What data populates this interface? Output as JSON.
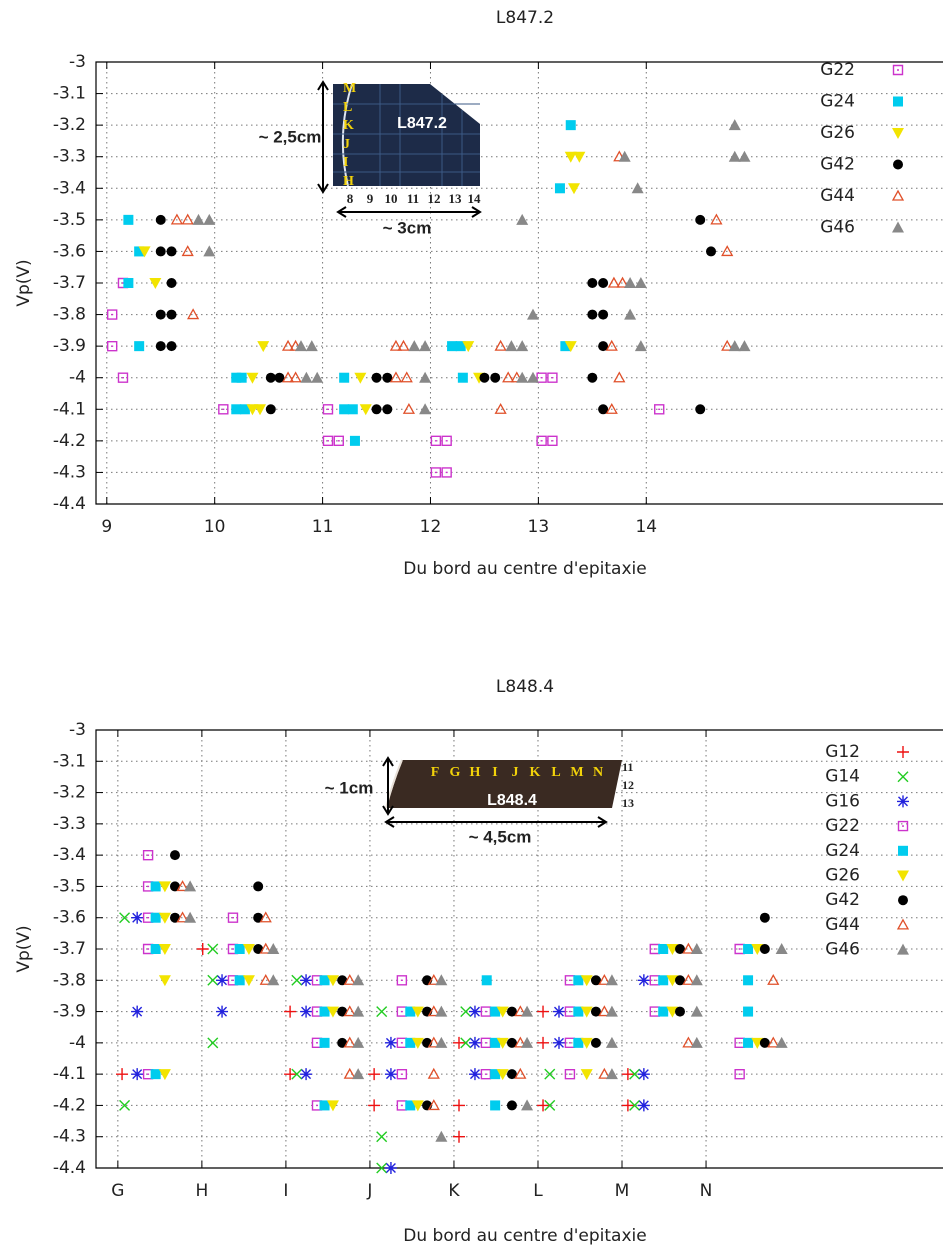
{
  "chart_data": [
    {
      "type": "scatter",
      "title": "L847.2",
      "x_label": "Du bord au centre d'epitaxie",
      "y_label": "Vp(V)",
      "xlim": [
        8.9,
        16.75
      ],
      "ylim": [
        -4.4,
        -3
      ],
      "xticks": [
        9,
        10,
        11,
        12,
        13,
        14
      ],
      "yticks": [
        -3,
        -3.1,
        -3.2,
        -3.3,
        -3.4,
        -3.5,
        -3.6,
        -3.7,
        -3.8,
        -3.9,
        -4,
        -4.1,
        -4.2,
        -4.3,
        -4.4
      ],
      "grid": true,
      "legend": "upper right",
      "inset": {
        "photo_label": "L847.2",
        "row_labels": [
          "M",
          "L",
          "K",
          "J",
          "I",
          "H"
        ],
        "column_labels": [
          "8",
          "9",
          "10",
          "11",
          "12",
          "13",
          "14"
        ],
        "height_label": "~ 2,5cm",
        "width_label": "~ 3cm"
      },
      "series": [
        {
          "name": "G22",
          "color": "#cc33cc",
          "marker": "square-dot",
          "x": [
            9.05,
            9.05,
            9.15,
            9.15,
            10.08,
            11.05,
            11.05,
            11.15,
            12.05,
            12.15,
            12.05,
            12.15,
            13.03,
            13.13,
            13.03,
            13.13,
            14.12
          ],
          "values": [
            -3.8,
            -3.9,
            -3.7,
            -4.0,
            -4.1,
            -4.1,
            -4.2,
            -4.2,
            -4.2,
            -4.2,
            -4.3,
            -4.3,
            -4.0,
            -4.0,
            -4.2,
            -4.2,
            -4.1
          ]
        },
        {
          "name": "G24",
          "color": "#00ccee",
          "marker": "square",
          "x": [
            9.2,
            9.3,
            9.2,
            9.3,
            10.2,
            10.25,
            10.2,
            10.28,
            11.2,
            11.2,
            11.28,
            11.3,
            12.2,
            12.28,
            12.3,
            13.2,
            13.3,
            13.25
          ],
          "values": [
            -3.5,
            -3.6,
            -3.7,
            -3.9,
            -4.0,
            -4.0,
            -4.1,
            -4.1,
            -4.0,
            -4.1,
            -4.1,
            -4.2,
            -3.9,
            -3.9,
            -4.0,
            -3.4,
            -3.2,
            -3.9
          ]
        },
        {
          "name": "G26",
          "color": "#f2e400",
          "marker": "triangle-down",
          "x": [
            9.35,
            9.45,
            10.35,
            10.45,
            10.35,
            10.42,
            11.35,
            11.4,
            12.45,
            13.3,
            13.38,
            13.33,
            13.3,
            12.35
          ],
          "values": [
            -3.6,
            -3.7,
            -4.0,
            -3.9,
            -4.1,
            -4.1,
            -4.0,
            -4.1,
            -4.0,
            -3.3,
            -3.3,
            -3.4,
            -3.9,
            -3.9
          ]
        },
        {
          "name": "G42",
          "color": "#000000",
          "marker": "circle",
          "x": [
            9.5,
            9.5,
            9.6,
            9.6,
            9.5,
            9.6,
            9.5,
            9.6,
            10.52,
            10.6,
            10.52,
            11.5,
            11.6,
            11.5,
            11.6,
            12.5,
            12.6,
            13.5,
            13.6,
            13.5,
            13.6,
            13.6,
            13.5,
            13.6,
            14.5,
            14.6,
            14.5
          ],
          "values": [
            -3.5,
            -3.6,
            -3.6,
            -3.7,
            -3.8,
            -3.8,
            -3.9,
            -3.9,
            -4.0,
            -4.0,
            -4.1,
            -4.0,
            -4.0,
            -4.1,
            -4.1,
            -4.0,
            -4.0,
            -3.7,
            -3.7,
            -3.8,
            -3.8,
            -3.9,
            -4.0,
            -4.1,
            -3.5,
            -3.6,
            -4.1
          ]
        },
        {
          "name": "G44",
          "color": "#e0502a",
          "marker": "triangle-open",
          "x": [
            9.65,
            9.75,
            9.75,
            9.8,
            10.68,
            10.75,
            10.68,
            10.75,
            11.68,
            11.75,
            11.68,
            11.78,
            11.8,
            12.65,
            12.72,
            12.8,
            12.65,
            13.7,
            13.78,
            13.75,
            13.68,
            13.75,
            13.68,
            14.65,
            14.75,
            14.75
          ],
          "values": [
            -3.5,
            -3.5,
            -3.6,
            -3.8,
            -3.9,
            -3.9,
            -4.0,
            -4.0,
            -3.9,
            -3.9,
            -4.0,
            -4.0,
            -4.1,
            -3.9,
            -4.0,
            -4.0,
            -4.1,
            -3.7,
            -3.7,
            -3.3,
            -3.9,
            -4.0,
            -4.1,
            -3.5,
            -3.6,
            -3.9
          ]
        },
        {
          "name": "G46",
          "color": "#888888",
          "marker": "triangle",
          "x": [
            9.85,
            9.95,
            9.95,
            10.8,
            10.9,
            10.85,
            10.95,
            11.85,
            11.95,
            11.95,
            11.95,
            12.75,
            12.85,
            12.85,
            12.95,
            12.85,
            12.95,
            13.8,
            13.85,
            13.95,
            13.85,
            13.95,
            13.92,
            14.82,
            14.82,
            14.91,
            14.82,
            14.91
          ],
          "values": [
            -3.5,
            -3.5,
            -3.6,
            -3.9,
            -3.9,
            -4.0,
            -4.0,
            -3.9,
            -3.9,
            -4.0,
            -4.1,
            -3.9,
            -3.9,
            -4.0,
            -4.0,
            -3.5,
            -3.8,
            -3.3,
            -3.7,
            -3.7,
            -3.8,
            -3.9,
            -3.4,
            -3.2,
            -3.3,
            -3.3,
            -3.9,
            -3.9
          ]
        }
      ]
    },
    {
      "type": "scatter",
      "title": "L848.4",
      "x_label": "Du bord au centre d'epitaxie",
      "y_label": "Vp(V)",
      "xlim": [
        -0.26,
        9.82
      ],
      "ylim": [
        -4.4,
        -3
      ],
      "xticks": [
        {
          "value": 0,
          "label": "G"
        },
        {
          "value": 1,
          "label": "H"
        },
        {
          "value": 2,
          "label": "I"
        },
        {
          "value": 3,
          "label": "J"
        },
        {
          "value": 4,
          "label": "K"
        },
        {
          "value": 5,
          "label": "L"
        },
        {
          "value": 6,
          "label": "M"
        },
        {
          "value": 7,
          "label": "N"
        }
      ],
      "yticks": [
        -3,
        -3.1,
        -3.2,
        -3.3,
        -3.4,
        -3.5,
        -3.6,
        -3.7,
        -3.8,
        -3.9,
        -4,
        -4.1,
        -4.2,
        -4.3,
        -4.4
      ],
      "grid": true,
      "legend": "upper right",
      "inset": {
        "photo_label": "L848.4",
        "row_labels": [
          "11",
          "12",
          "13"
        ],
        "column_labels": [
          "F",
          "G",
          "H",
          "I",
          "J",
          "K",
          "L",
          "M",
          "N"
        ],
        "height_label": "~ 1cm",
        "width_label": "~ 4,5cm"
      },
      "series": [
        {
          "name": "G12",
          "color": "#ee1111",
          "marker": "plus",
          "x": [
            1.01,
            2.05,
            5.06,
            4.06,
            5.06,
            0.05,
            2.05,
            3.05,
            6.07,
            3.05,
            4.06,
            5.06,
            6.07,
            4.06
          ],
          "values": [
            -3.7,
            -3.9,
            -3.9,
            -4.0,
            -4.0,
            -4.1,
            -4.1,
            -4.1,
            -4.1,
            -4.2,
            -4.2,
            -4.2,
            -4.2,
            -4.3
          ]
        },
        {
          "name": "G14",
          "color": "#22cc22",
          "marker": "cross",
          "x": [
            0.08,
            1.13,
            1.13,
            2.13,
            3.14,
            4.14,
            1.13,
            4.14,
            2.13,
            5.14,
            6.15,
            0.08,
            5.14,
            6.15,
            3.14,
            3.14
          ],
          "values": [
            -3.6,
            -3.7,
            -3.8,
            -3.8,
            -3.9,
            -3.9,
            -4.0,
            -4.0,
            -4.1,
            -4.1,
            -4.1,
            -4.2,
            -4.2,
            -4.2,
            -4.3,
            -4.4
          ]
        },
        {
          "name": "G16",
          "color": "#2222dd",
          "marker": "star",
          "x": [
            0.23,
            1.24,
            2.24,
            6.26,
            0.23,
            1.24,
            2.24,
            4.25,
            5.25,
            3.25,
            4.25,
            5.25,
            0.23,
            2.24,
            3.25,
            4.25,
            6.26,
            6.26,
            3.25
          ],
          "values": [
            -3.6,
            -3.8,
            -3.8,
            -3.8,
            -3.9,
            -3.9,
            -3.9,
            -3.9,
            -3.9,
            -4.0,
            -4.0,
            -4.0,
            -4.1,
            -4.1,
            -4.1,
            -4.1,
            -4.1,
            -4.2,
            -4.4
          ]
        },
        {
          "name": "G22",
          "color": "#cc33cc",
          "marker": "square-dot",
          "x": [
            0.36,
            0.36,
            0.36,
            1.37,
            0.36,
            1.37,
            6.39,
            7.4,
            1.37,
            2.37,
            3.38,
            5.38,
            6.39,
            2.37,
            3.38,
            4.38,
            5.38,
            6.39,
            2.37,
            3.38,
            4.38,
            5.38,
            7.4,
            0.36,
            3.38,
            4.38,
            5.38,
            7.4,
            2.37,
            3.38
          ],
          "values": [
            -3.4,
            -3.5,
            -3.6,
            -3.6,
            -3.7,
            -3.7,
            -3.7,
            -3.7,
            -3.8,
            -3.8,
            -3.8,
            -3.8,
            -3.8,
            -3.9,
            -3.9,
            -3.9,
            -3.9,
            -3.9,
            -4.0,
            -4.0,
            -4.0,
            -4.0,
            -4.0,
            -4.1,
            -4.1,
            -4.1,
            -4.1,
            -4.1,
            -4.2,
            -4.2
          ]
        },
        {
          "name": "G24",
          "color": "#00ccee",
          "marker": "square",
          "x": [
            0.45,
            0.45,
            0.45,
            1.45,
            6.49,
            7.5,
            1.45,
            2.46,
            4.39,
            5.48,
            6.49,
            7.5,
            2.46,
            3.48,
            4.49,
            5.48,
            6.49,
            7.5,
            2.46,
            3.48,
            4.49,
            5.48,
            7.5,
            0.45,
            4.49,
            2.46,
            3.48,
            4.49
          ],
          "values": [
            -3.5,
            -3.6,
            -3.7,
            -3.7,
            -3.7,
            -3.7,
            -3.8,
            -3.8,
            -3.8,
            -3.8,
            -3.8,
            -3.8,
            -3.9,
            -3.9,
            -3.9,
            -3.9,
            -3.9,
            -3.9,
            -4.0,
            -4.0,
            -4.0,
            -4.0,
            -4.0,
            -4.1,
            -4.1,
            -4.2,
            -4.2,
            -4.2
          ]
        },
        {
          "name": "G26",
          "color": "#f2e400",
          "marker": "triangle-down",
          "x": [
            0.56,
            0.56,
            0.56,
            1.56,
            6.6,
            7.61,
            0.56,
            1.56,
            2.56,
            5.58,
            6.6,
            2.56,
            3.57,
            4.58,
            5.58,
            6.6,
            3.57,
            4.58,
            5.58,
            7.61,
            0.56,
            4.58,
            5.58,
            2.56,
            3.57
          ],
          "values": [
            -3.5,
            -3.6,
            -3.7,
            -3.7,
            -3.7,
            -3.7,
            -3.8,
            -3.8,
            -3.8,
            -3.8,
            -3.8,
            -3.9,
            -3.9,
            -3.9,
            -3.9,
            -3.9,
            -4.0,
            -4.0,
            -4.0,
            -4.0,
            -4.1,
            -4.1,
            -4.1,
            -4.2,
            -4.2
          ]
        },
        {
          "name": "G42",
          "color": "#000000",
          "marker": "circle",
          "x": [
            0.68,
            0.68,
            1.67,
            0.68,
            1.67,
            7.7,
            1.67,
            6.69,
            7.7,
            2.67,
            3.68,
            5.69,
            6.69,
            2.67,
            3.68,
            4.69,
            5.69,
            6.69,
            2.67,
            3.68,
            4.69,
            5.69,
            7.7,
            4.69,
            3.68,
            4.69
          ],
          "values": [
            -3.4,
            -3.5,
            -3.5,
            -3.6,
            -3.6,
            -3.6,
            -3.7,
            -3.7,
            -3.7,
            -3.8,
            -3.8,
            -3.8,
            -3.8,
            -3.9,
            -3.9,
            -3.9,
            -3.9,
            -3.9,
            -4.0,
            -4.0,
            -4.0,
            -4.0,
            -4.0,
            -4.1,
            -4.2,
            -4.2
          ]
        },
        {
          "name": "G44",
          "color": "#e0502a",
          "marker": "triangle-open",
          "x": [
            0.77,
            0.77,
            1.76,
            1.76,
            6.79,
            1.76,
            2.76,
            3.76,
            5.79,
            6.79,
            7.8,
            2.76,
            3.76,
            4.79,
            5.79,
            2.76,
            3.76,
            4.79,
            6.79,
            7.8,
            2.76,
            3.76,
            4.79,
            5.79,
            3.76
          ],
          "values": [
            -3.5,
            -3.6,
            -3.6,
            -3.7,
            -3.7,
            -3.8,
            -3.8,
            -3.8,
            -3.8,
            -3.8,
            -3.8,
            -3.9,
            -3.9,
            -3.9,
            -3.9,
            -4.0,
            -4.0,
            -4.0,
            -4.0,
            -4.0,
            -4.1,
            -4.1,
            -4.1,
            -4.1,
            -4.2
          ]
        },
        {
          "name": "G46",
          "color": "#888888",
          "marker": "triangle",
          "x": [
            0.86,
            0.86,
            1.85,
            6.89,
            7.9,
            1.85,
            2.86,
            3.85,
            5.88,
            6.89,
            2.86,
            3.85,
            4.87,
            5.88,
            6.89,
            2.86,
            3.85,
            4.87,
            5.88,
            6.89,
            7.9,
            2.86,
            5.88,
            4.87,
            3.85
          ],
          "values": [
            -3.5,
            -3.6,
            -3.7,
            -3.7,
            -3.7,
            -3.8,
            -3.8,
            -3.8,
            -3.8,
            -3.8,
            -3.9,
            -3.9,
            -3.9,
            -3.9,
            -3.9,
            -4.0,
            -4.0,
            -4.0,
            -4.0,
            -4.0,
            -4.0,
            -4.1,
            -4.1,
            -4.2,
            -4.3
          ]
        }
      ]
    }
  ]
}
